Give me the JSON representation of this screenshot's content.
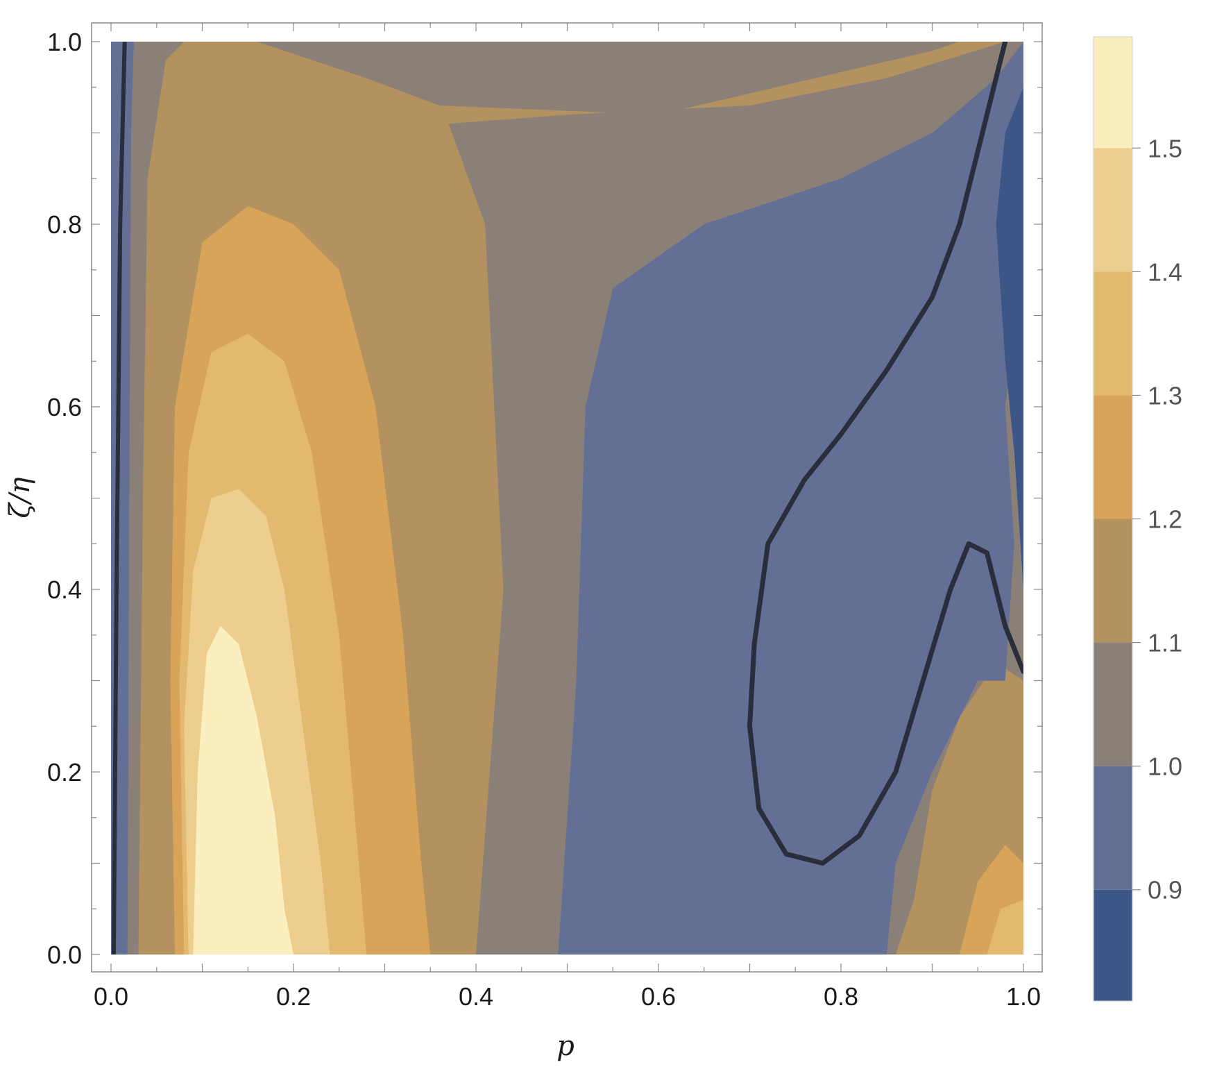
{
  "chart_data": {
    "type": "contour",
    "xlabel": "p",
    "ylabel": "ζ/η",
    "xlim": [
      0.0,
      1.0
    ],
    "ylim": [
      0.0,
      1.0
    ],
    "x_ticks": [
      "0.0",
      "0.2",
      "0.4",
      "0.6",
      "0.8",
      "1.0"
    ],
    "y_ticks": [
      "0.0",
      "0.2",
      "0.4",
      "0.6",
      "0.8",
      "1.0"
    ],
    "colorbar": {
      "range": [
        0.81,
        1.59
      ],
      "levels": [
        0.9,
        1.0,
        1.1,
        1.2,
        1.3,
        1.4,
        1.5
      ],
      "labels": [
        "0.9",
        "1.0",
        "1.1",
        "1.2",
        "1.3",
        "1.4",
        "1.5"
      ]
    },
    "bands": [
      {
        "range": [
          0.81,
          0.9
        ],
        "color": "#3d5688"
      },
      {
        "range": [
          0.9,
          1.0
        ],
        "color": "#646f96"
      },
      {
        "range": [
          1.0,
          1.1
        ],
        "color": "#8a8078"
      },
      {
        "range": [
          1.1,
          1.2
        ],
        "color": "#b4925f"
      },
      {
        "range": [
          1.2,
          1.3
        ],
        "color": "#d8a45a"
      },
      {
        "range": [
          1.3,
          1.4
        ],
        "color": "#e3b86f"
      },
      {
        "range": [
          1.4,
          1.5
        ],
        "color": "#edce8e"
      },
      {
        "range": [
          1.5,
          1.59
        ],
        "color": "#fbefc0"
      }
    ],
    "contour_line": {
      "level": 1.0,
      "color": "#2a2e3c"
    },
    "grid": false,
    "legend": "colorbar-right"
  }
}
